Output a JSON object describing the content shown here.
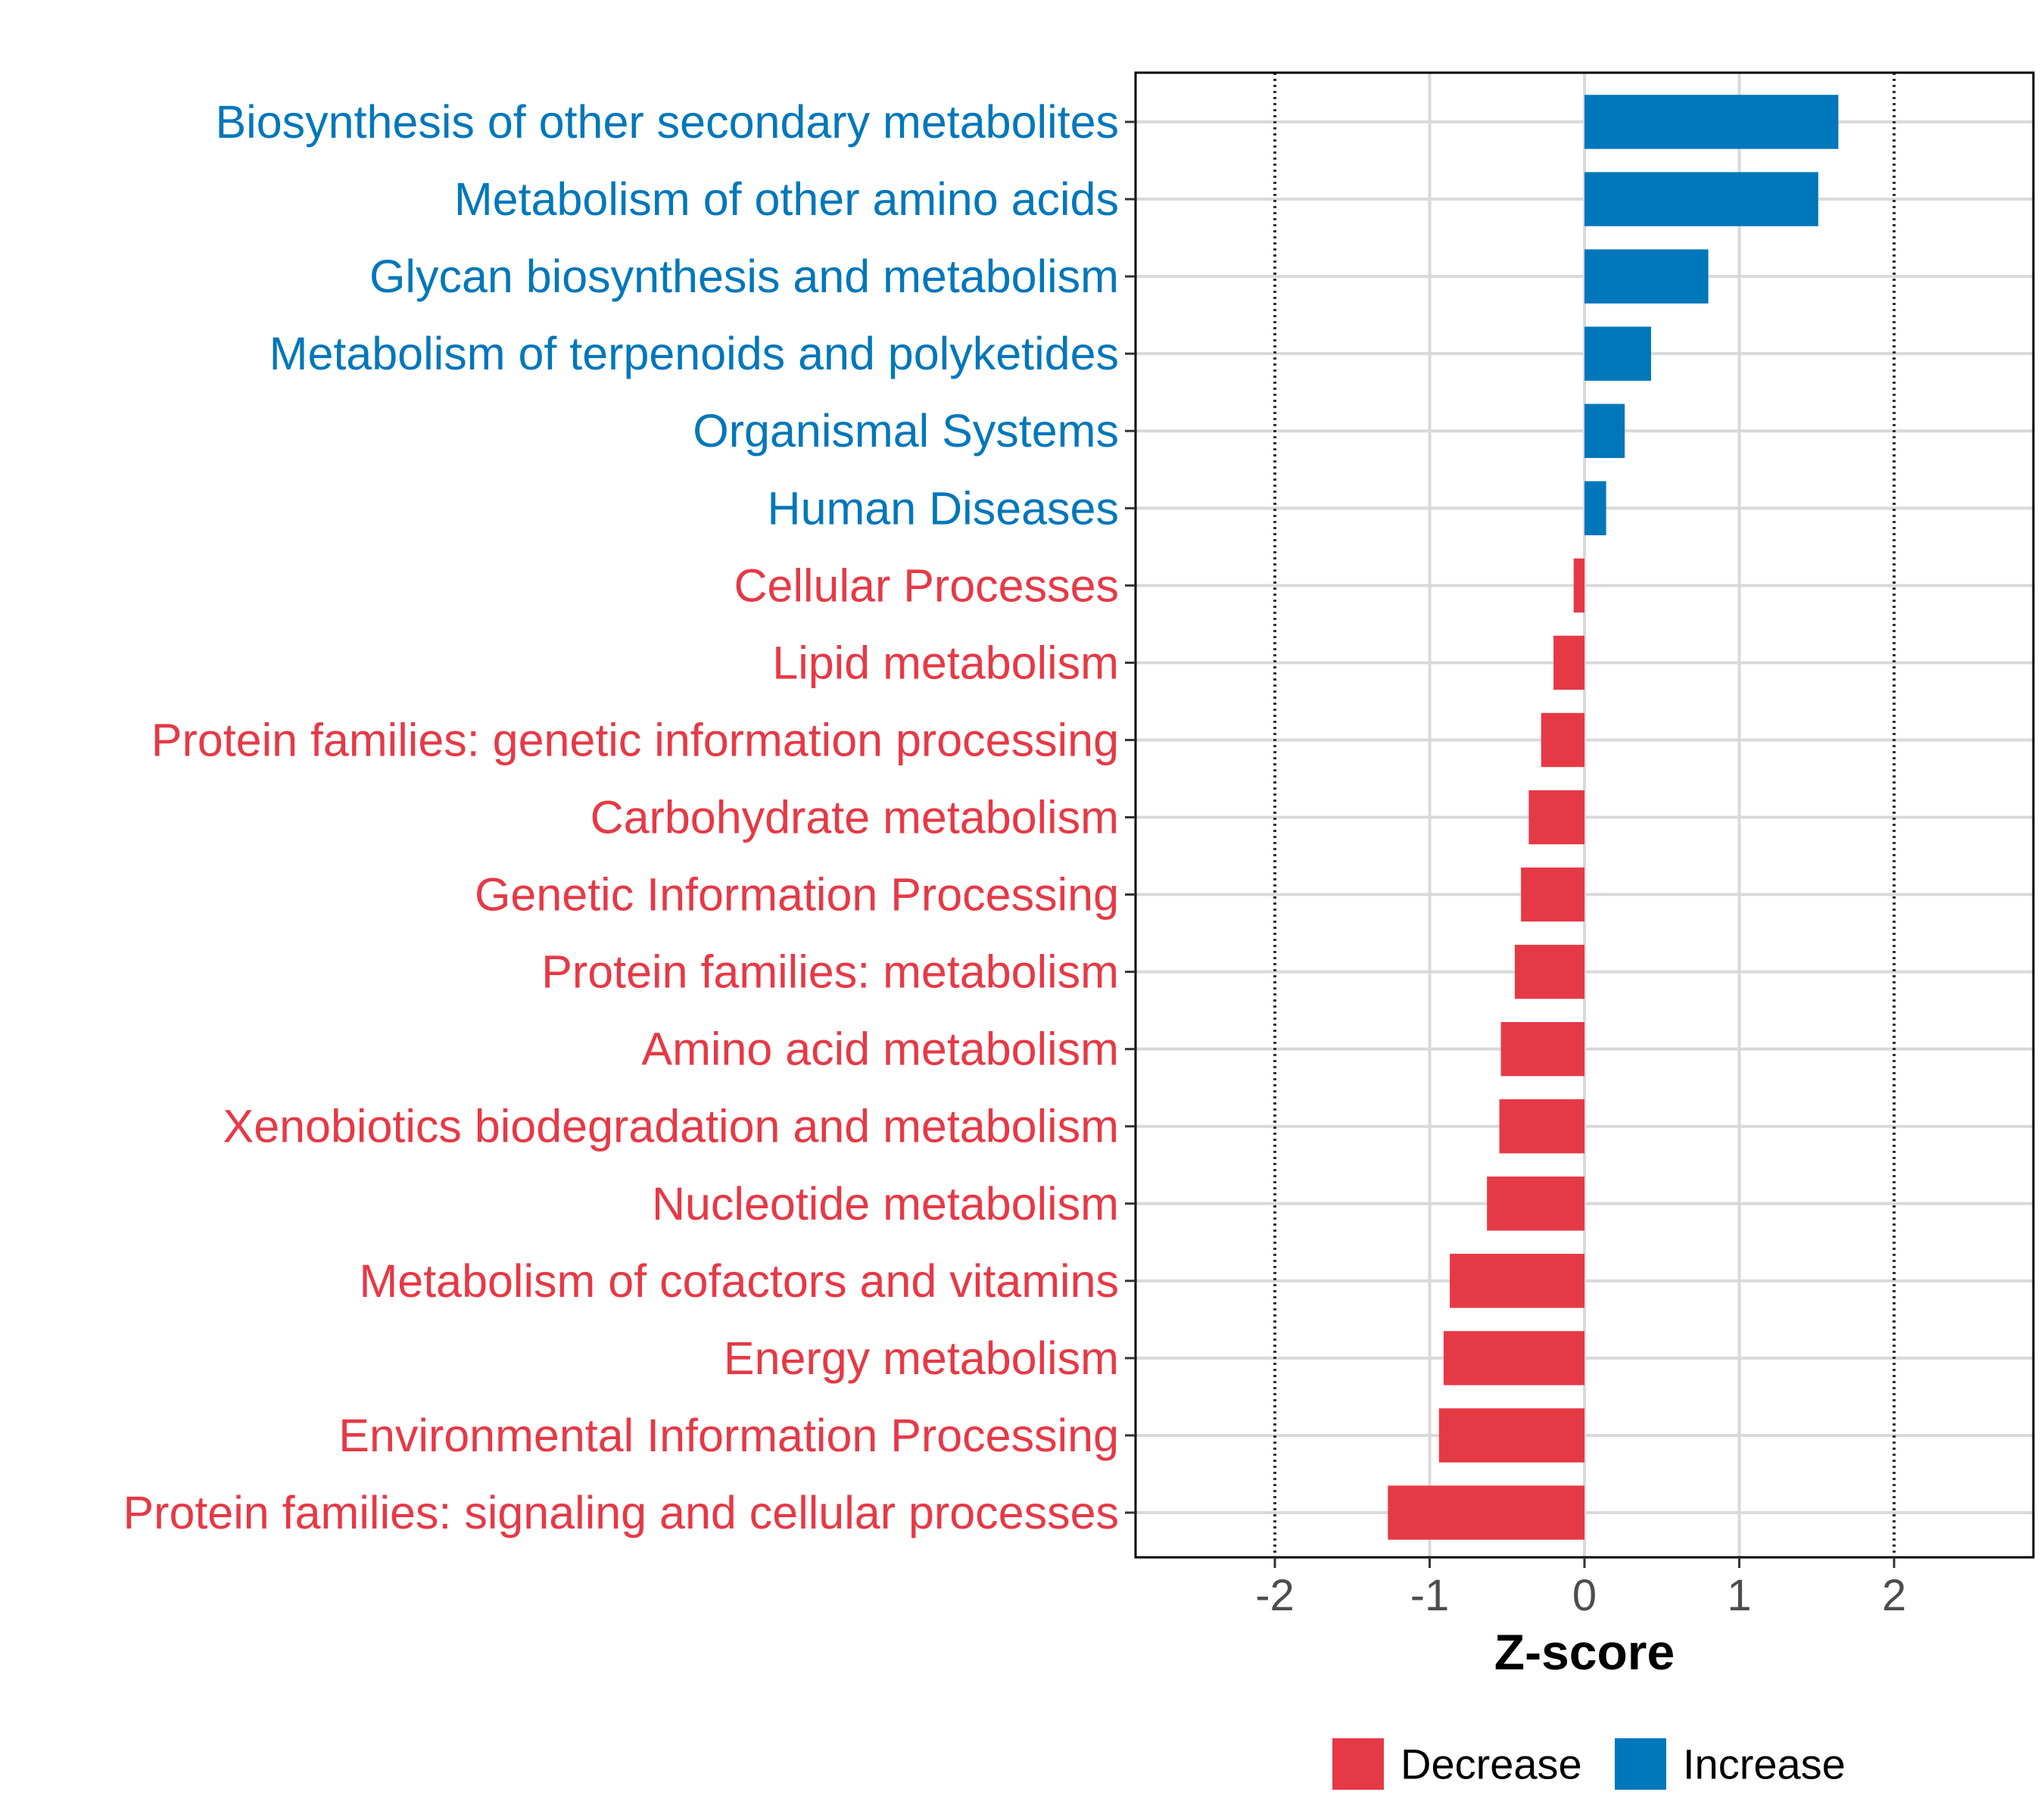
{
  "chart_data": {
    "type": "bar",
    "orientation": "horizontal",
    "xlabel": "Z-score",
    "xlim": [
      -2.9,
      2.9
    ],
    "x_ticks": [
      -2,
      -1,
      0,
      1,
      2
    ],
    "x_tick_labels": [
      "-2",
      "-1",
      "0",
      "1",
      "2"
    ],
    "reference_lines": [
      -2,
      2
    ],
    "grid": true,
    "categories": [
      "Biosynthesis of other secondary metabolites",
      "Metabolism of other amino acids",
      "Glycan biosynthesis and metabolism",
      "Metabolism of terpenoids and polyketides",
      "Organismal Systems",
      "Human Diseases",
      "Cellular Processes",
      "Lipid metabolism",
      "Protein families: genetic information processing",
      "Carbohydrate metabolism",
      "Genetic Information Processing",
      "Protein families: metabolism",
      "Amino acid metabolism",
      "Xenobiotics biodegradation and metabolism",
      "Nucleotide metabolism",
      "Metabolism of cofactors and vitamins",
      "Energy metabolism",
      "Environmental Information Processing",
      "Protein families: signaling and cellular processes"
    ],
    "values": [
      1.64,
      1.51,
      0.8,
      0.43,
      0.26,
      0.14,
      -0.07,
      -0.2,
      -0.28,
      -0.36,
      -0.41,
      -0.45,
      -0.54,
      -0.55,
      -0.63,
      -0.87,
      -0.91,
      -0.94,
      -1.27
    ],
    "legend": {
      "position": "bottom",
      "entries": [
        {
          "label": "Decrease",
          "color": "#e63946"
        },
        {
          "label": "Increase",
          "color": "#0077bb"
        }
      ]
    }
  },
  "colors": {
    "decrease": "#e63946",
    "increase": "#0077bb",
    "grid": "#d9d9d9",
    "reference_line": "#333333",
    "axis": "#000000"
  }
}
